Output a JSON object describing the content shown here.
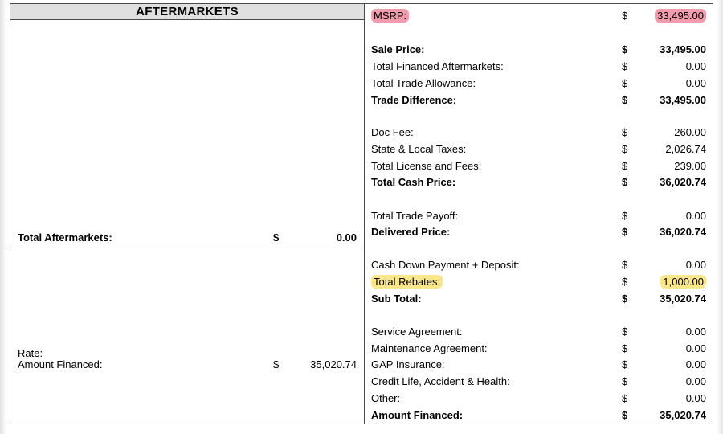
{
  "left": {
    "header": "AFTERMARKETS",
    "total_aftermarkets_label": "Total Aftermarkets:",
    "total_aftermarkets_currency": "$",
    "total_aftermarkets_value": "0.00",
    "rate_label": "Rate:",
    "amount_financed_label": "Amount Financed:",
    "amount_financed_currency": "$",
    "amount_financed_value": "35,020.74"
  },
  "right": {
    "rows": [
      {
        "label": "MSRP:",
        "currency": "$",
        "amount": "33,495.00",
        "bold": false,
        "highlight": "red"
      },
      {
        "label": "Sale Price:",
        "currency": "$",
        "amount": "33,495.00",
        "bold": true
      },
      {
        "label": "Total Financed Aftermarkets:",
        "currency": "$",
        "amount": "0.00",
        "bold": false
      },
      {
        "label": "Total Trade Allowance:",
        "currency": "$",
        "amount": "0.00",
        "bold": false
      },
      {
        "label": "Trade Difference:",
        "currency": "$",
        "amount": "33,495.00",
        "bold": true
      },
      {
        "label": "Doc Fee:",
        "currency": "$",
        "amount": "260.00",
        "bold": false
      },
      {
        "label": "State & Local Taxes:",
        "currency": "$",
        "amount": "2,026.74",
        "bold": false
      },
      {
        "label": "Total License and Fees:",
        "currency": "$",
        "amount": "239.00",
        "bold": false
      },
      {
        "label": "Total Cash Price:",
        "currency": "$",
        "amount": "36,020.74",
        "bold": true
      },
      {
        "label": "Total Trade Payoff:",
        "currency": "$",
        "amount": "0.00",
        "bold": false
      },
      {
        "label": "Delivered Price:",
        "currency": "$",
        "amount": "36,020.74",
        "bold": true
      },
      {
        "label": "Cash Down Payment + Deposit:",
        "currency": "$",
        "amount": "0.00",
        "bold": false
      },
      {
        "label": "Total Rebates:",
        "currency": "$",
        "amount": "1,000.00",
        "bold": false,
        "highlight": "yellow"
      },
      {
        "label": "Sub Total:",
        "currency": "$",
        "amount": "35,020.74",
        "bold": true
      },
      {
        "label": "Service Agreement:",
        "currency": "$",
        "amount": "0.00",
        "bold": false
      },
      {
        "label": "Maintenance Agreement:",
        "currency": "$",
        "amount": "0.00",
        "bold": false
      },
      {
        "label": "GAP Insurance:",
        "currency": "$",
        "amount": "0.00",
        "bold": false
      },
      {
        "label": "Credit Life, Accident & Health:",
        "currency": "$",
        "amount": "0.00",
        "bold": false
      },
      {
        "label": "Other:",
        "currency": "$",
        "amount": "0.00",
        "bold": false
      },
      {
        "label": "Amount Financed:",
        "currency": "$",
        "amount": "35,020.74",
        "bold": true
      }
    ]
  },
  "colors": {
    "border": "#4a4a4a",
    "header_bg": "#e0e0e0",
    "highlight_red": "#ec708a",
    "highlight_yellow": "#fce278"
  }
}
